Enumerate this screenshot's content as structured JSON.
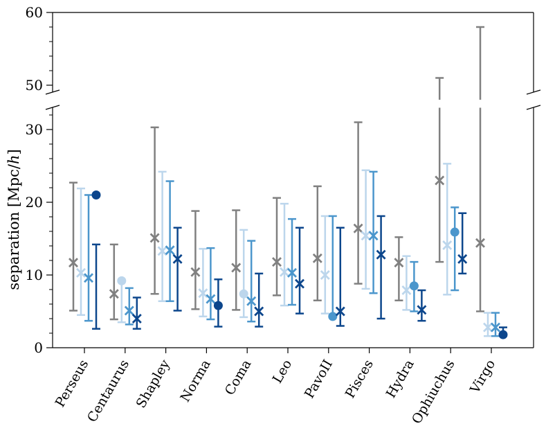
{
  "chart_data": {
    "type": "errorbar",
    "title": "",
    "xlabel": "",
    "ylabel": "separation [Mpc/h]",
    "ylabel_parts": {
      "main": "separation [Mpc/",
      "italic": "h",
      "close": "]"
    },
    "broken_y_axis": true,
    "upper_panel_ylim": [
      48,
      60
    ],
    "lower_panel_ylim": [
      0,
      33
    ],
    "upper_ticks": [
      "60",
      "50"
    ],
    "lower_ticks": [
      "30",
      "20",
      "10",
      "0"
    ],
    "categories": [
      "Perseus",
      "Centaurus",
      "Shapley",
      "Norma",
      "Coma",
      "Leo",
      "PavoII",
      "Pisces",
      "Hydra",
      "Ophiuchus",
      "Virgo"
    ],
    "series": [
      {
        "name": "series-1",
        "color": "#808080",
        "points": [
          {
            "marker": "x",
            "value": 11.7,
            "low": 5.1,
            "high": 22.7
          },
          {
            "marker": "x",
            "value": 7.4,
            "low": 3.9,
            "high": 14.2
          },
          {
            "marker": "x",
            "value": 15.1,
            "low": 7.4,
            "high": 30.3
          },
          {
            "marker": "x",
            "value": 10.4,
            "low": 5.3,
            "high": 18.8
          },
          {
            "marker": "x",
            "value": 11.0,
            "low": 5.2,
            "high": 18.9
          },
          {
            "marker": "x",
            "value": 11.8,
            "low": 7.2,
            "high": 20.6
          },
          {
            "marker": "x",
            "value": 12.3,
            "low": 6.5,
            "high": 22.2
          },
          {
            "marker": "x",
            "value": 16.4,
            "low": 8.8,
            "high": 31.0
          },
          {
            "marker": "x",
            "value": 11.7,
            "low": 6.5,
            "high": 15.2
          },
          {
            "marker": "x",
            "value": 23.0,
            "low": 11.8,
            "high": 51.0
          },
          {
            "marker": "x",
            "value": 14.4,
            "low": 5.0,
            "high": 58.0
          }
        ]
      },
      {
        "name": "series-2",
        "color": "#bcd6ec",
        "points": [
          {
            "marker": "x",
            "value": 10.3,
            "low": 4.5,
            "high": 21.9
          },
          {
            "marker": "o",
            "value": 9.2,
            "low": 3.5,
            "high": 9.2
          },
          {
            "marker": "x",
            "value": 13.3,
            "low": 6.4,
            "high": 24.2
          },
          {
            "marker": "x",
            "value": 7.5,
            "low": 4.3,
            "high": 13.6
          },
          {
            "marker": "o",
            "value": 7.4,
            "low": 4.2,
            "high": 16.2
          },
          {
            "marker": "x",
            "value": 10.4,
            "low": 5.8,
            "high": 19.8
          },
          {
            "marker": "x",
            "value": 10.0,
            "low": 4.7,
            "high": 18.1
          },
          {
            "marker": "x",
            "value": 15.4,
            "low": 8.1,
            "high": 24.4
          },
          {
            "marker": "x",
            "value": 7.9,
            "low": 5.2,
            "high": 12.6
          },
          {
            "marker": "x",
            "value": 14.1,
            "low": 7.3,
            "high": 25.3
          },
          {
            "marker": "x",
            "value": 2.8,
            "low": 1.6,
            "high": 4.8
          }
        ]
      },
      {
        "name": "series-3",
        "color": "#4b96cc",
        "points": [
          {
            "marker": "x",
            "value": 9.6,
            "low": 3.7,
            "high": 21.0
          },
          {
            "marker": "x",
            "value": 5.1,
            "low": 3.2,
            "high": 8.2
          },
          {
            "marker": "x",
            "value": 13.4,
            "low": 6.4,
            "high": 22.9
          },
          {
            "marker": "x",
            "value": 6.7,
            "low": 3.9,
            "high": 13.7
          },
          {
            "marker": "x",
            "value": 6.4,
            "low": 3.6,
            "high": 14.7
          },
          {
            "marker": "x",
            "value": 10.3,
            "low": 5.9,
            "high": 17.7
          },
          {
            "marker": "o",
            "value": 4.3,
            "low": 4.3,
            "high": 18.1
          },
          {
            "marker": "x",
            "value": 15.4,
            "low": 7.5,
            "high": 24.2
          },
          {
            "marker": "o",
            "value": 8.5,
            "low": 5.0,
            "high": 11.8
          },
          {
            "marker": "o",
            "value": 15.9,
            "low": 7.9,
            "high": 19.3
          },
          {
            "marker": "x",
            "value": 2.8,
            "low": 1.6,
            "high": 4.8
          }
        ]
      },
      {
        "name": "series-4",
        "color": "#0c468c",
        "points": [
          {
            "marker": "o",
            "value": 21.0,
            "low": 2.6,
            "high": 14.2
          },
          {
            "marker": "x",
            "value": 4.0,
            "low": 2.6,
            "high": 6.9
          },
          {
            "marker": "x",
            "value": 12.2,
            "low": 5.1,
            "high": 16.5
          },
          {
            "marker": "o",
            "value": 5.8,
            "low": 2.9,
            "high": 9.4
          },
          {
            "marker": "x",
            "value": 5.0,
            "low": 2.9,
            "high": 10.2
          },
          {
            "marker": "x",
            "value": 8.8,
            "low": 4.7,
            "high": 16.5
          },
          {
            "marker": "x",
            "value": 5.0,
            "low": 3.0,
            "high": 16.5
          },
          {
            "marker": "x",
            "value": 12.8,
            "low": 4.0,
            "high": 18.1
          },
          {
            "marker": "x",
            "value": 5.2,
            "low": 3.7,
            "high": 7.9
          },
          {
            "marker": "x",
            "value": 12.2,
            "low": 10.2,
            "high": 18.5
          },
          {
            "marker": "o",
            "value": 1.8,
            "low": 1.6,
            "high": 2.8
          }
        ]
      }
    ]
  }
}
